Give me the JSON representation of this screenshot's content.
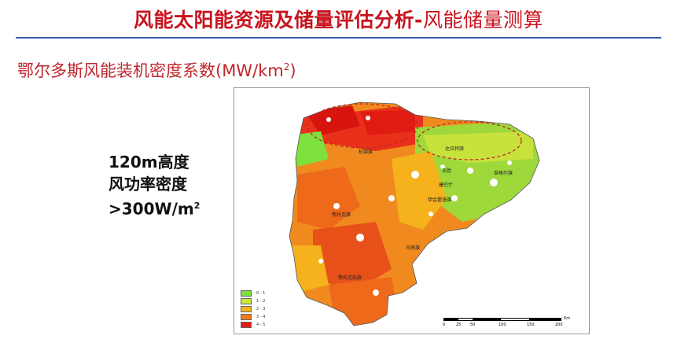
{
  "header": {
    "title_main": "风能太阳能资源及储量评估分析-",
    "title_sub": "风能储量测算"
  },
  "subtitle": {
    "text": "鄂尔多斯风能装机密度系数(MW/km",
    "sup": "2",
    "close": ")"
  },
  "note": {
    "line1": "120m高度",
    "line2": "风功率密度",
    "line3": ">300W/m",
    "line3_sup": "2"
  },
  "map": {
    "legend": [
      {
        "label": "0 - 1",
        "color": "#7ee03c"
      },
      {
        "label": "1 - 2",
        "color": "#c8e83a"
      },
      {
        "label": "2 - 3",
        "color": "#f5b21c"
      },
      {
        "label": "3 - 4",
        "color": "#f07a1c"
      },
      {
        "label": "4 - 5",
        "color": "#e81a14"
      }
    ],
    "places": [
      "杭锦旗",
      "达拉特旗",
      "准格尔旗",
      "东胜",
      "康巴什",
      "伊金霍洛旗",
      "鄂托克旗",
      "乌审旗",
      "鄂托克前旗"
    ],
    "scale": {
      "ticks": [
        "0",
        "25",
        "50",
        "100",
        "150",
        "200"
      ],
      "unit": "Km"
    }
  }
}
